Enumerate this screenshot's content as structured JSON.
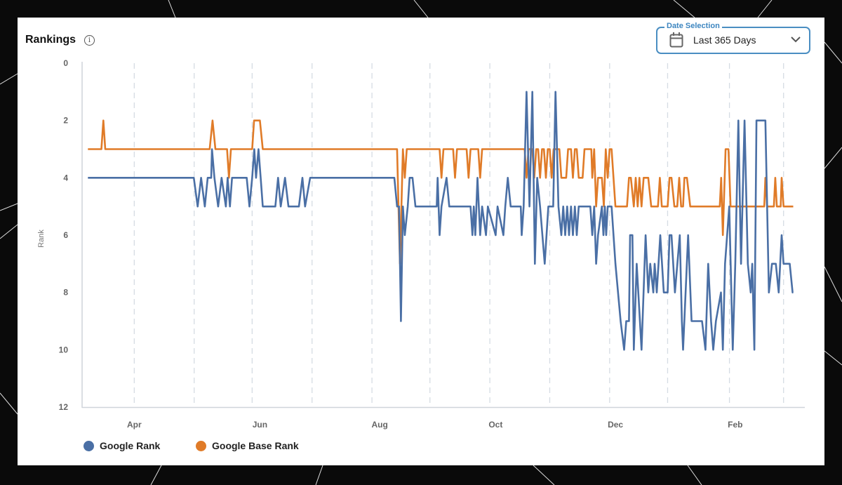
{
  "panel": {
    "title": "Rankings",
    "info_icon": "info-icon"
  },
  "date_selection": {
    "label": "Date Selection",
    "value": "Last 365 Days",
    "icon": "calendar-icon"
  },
  "colors": {
    "google_rank": "#4a6fa5",
    "google_base_rank": "#e07b28",
    "grid": "#d5dce3"
  },
  "chart_data": {
    "type": "line",
    "title": "Rankings",
    "xlabel": "",
    "ylabel": "Rank",
    "x_unit": "day index over last 365 days",
    "xlim": [
      -3,
      371
    ],
    "ylim": [
      12,
      0
    ],
    "y_ticks": [
      0,
      2,
      4,
      6,
      8,
      10,
      12
    ],
    "x_ticks": [
      {
        "label": "Apr",
        "x": 24
      },
      {
        "label": "Jun",
        "x": 89
      },
      {
        "label": "Aug",
        "x": 151
      },
      {
        "label": "Oct",
        "x": 211
      },
      {
        "label": "Dec",
        "x": 273
      },
      {
        "label": "Feb",
        "x": 335
      }
    ],
    "x_gridlines": [
      24,
      55,
      85,
      116,
      147,
      177,
      208,
      239,
      270,
      300,
      332,
      360
    ],
    "grid": "vertical dashed",
    "legend_position": "bottom-left",
    "series": [
      {
        "name": "Google Rank",
        "color": "#4a6fa5",
        "points": [
          [
            0,
            4
          ],
          [
            54.8,
            4
          ],
          [
            56.8,
            5
          ],
          [
            58.6,
            4
          ],
          [
            60.5,
            5
          ],
          [
            62,
            4
          ],
          [
            63.8,
            4
          ],
          [
            64.2,
            3
          ],
          [
            65.5,
            4
          ],
          [
            67.4,
            5
          ],
          [
            69.2,
            4
          ],
          [
            71.4,
            5
          ],
          [
            72.3,
            4
          ],
          [
            73.5,
            5
          ],
          [
            74.6,
            4
          ],
          [
            82.2,
            4
          ],
          [
            83.6,
            5
          ],
          [
            85,
            4
          ],
          [
            86.1,
            3
          ],
          [
            87,
            4
          ],
          [
            88.3,
            3
          ],
          [
            89.4,
            4
          ],
          [
            90.5,
            5
          ],
          [
            97,
            5
          ],
          [
            98.4,
            4
          ],
          [
            99.8,
            5
          ],
          [
            102,
            4
          ],
          [
            103.8,
            5
          ],
          [
            109.2,
            5
          ],
          [
            111,
            4
          ],
          [
            112.4,
            5
          ],
          [
            115,
            4
          ],
          [
            158.6,
            4
          ],
          [
            160,
            5
          ],
          [
            161,
            5
          ],
          [
            162,
            9
          ],
          [
            163,
            5
          ],
          [
            164,
            6
          ],
          [
            165.5,
            5
          ],
          [
            166.5,
            4
          ],
          [
            168,
            4
          ],
          [
            169.5,
            5
          ],
          [
            180.5,
            5
          ],
          [
            181,
            4
          ],
          [
            182,
            6
          ],
          [
            183,
            5
          ],
          [
            185.6,
            4
          ],
          [
            187,
            5
          ],
          [
            198,
            5
          ],
          [
            199,
            6
          ],
          [
            199.7,
            5
          ],
          [
            200.5,
            6
          ],
          [
            201.6,
            4
          ],
          [
            203,
            6
          ],
          [
            204,
            5
          ],
          [
            206,
            6
          ],
          [
            207,
            5
          ],
          [
            211,
            6
          ],
          [
            212,
            5
          ],
          [
            215,
            6
          ],
          [
            216,
            5
          ],
          [
            217.3,
            4
          ],
          [
            218.8,
            5
          ],
          [
            224,
            5
          ],
          [
            224.5,
            6
          ],
          [
            225.5,
            5
          ],
          [
            227,
            1
          ],
          [
            228.5,
            5
          ],
          [
            230,
            1
          ],
          [
            231.3,
            7
          ],
          [
            232.5,
            4
          ],
          [
            234,
            5
          ],
          [
            236.4,
            7
          ],
          [
            238.3,
            5
          ],
          [
            240.8,
            5
          ],
          [
            242,
            1
          ],
          [
            243.5,
            5
          ],
          [
            245,
            6
          ],
          [
            246,
            5
          ],
          [
            247,
            6
          ],
          [
            248,
            5
          ],
          [
            249,
            6
          ],
          [
            250,
            5
          ],
          [
            251,
            6
          ],
          [
            252,
            5
          ],
          [
            253,
            6
          ],
          [
            254,
            5
          ],
          [
            260,
            5
          ],
          [
            261,
            6
          ],
          [
            262,
            5
          ],
          [
            263,
            7
          ],
          [
            264,
            6
          ],
          [
            266,
            5
          ],
          [
            266.8,
            6
          ],
          [
            267.5,
            5
          ],
          [
            268.2,
            6
          ],
          [
            269,
            5
          ],
          [
            271,
            5
          ],
          [
            273,
            7
          ],
          [
            275.7,
            9
          ],
          [
            277.5,
            10
          ],
          [
            278.6,
            9
          ],
          [
            280,
            9
          ],
          [
            280.6,
            6
          ],
          [
            281.8,
            6
          ],
          [
            282.5,
            10
          ],
          [
            284,
            7
          ],
          [
            286.5,
            10
          ],
          [
            288.6,
            6
          ],
          [
            290,
            8
          ],
          [
            291,
            7
          ],
          [
            292.6,
            8
          ],
          [
            293.3,
            7
          ],
          [
            294.4,
            8
          ],
          [
            296.2,
            6
          ],
          [
            298,
            8
          ],
          [
            300,
            8
          ],
          [
            301,
            6
          ],
          [
            302,
            6
          ],
          [
            303.8,
            8
          ],
          [
            306.3,
            6
          ],
          [
            307.4,
            9
          ],
          [
            308,
            10
          ],
          [
            310.6,
            6
          ],
          [
            312.4,
            9
          ],
          [
            317.8,
            9
          ],
          [
            319.6,
            10
          ],
          [
            321,
            7
          ],
          [
            322.5,
            9
          ],
          [
            323.6,
            10
          ],
          [
            325,
            9
          ],
          [
            327.6,
            8
          ],
          [
            328.6,
            10
          ],
          [
            329.7,
            7
          ],
          [
            331.9,
            5
          ],
          [
            333.7,
            10
          ],
          [
            335,
            7
          ],
          [
            336.6,
            2
          ],
          [
            338,
            7
          ],
          [
            339.8,
            2
          ],
          [
            341.5,
            7
          ],
          [
            343,
            8
          ],
          [
            343.8,
            7
          ],
          [
            344.9,
            10
          ],
          [
            346,
            2
          ],
          [
            350.6,
            2
          ],
          [
            352.4,
            8
          ],
          [
            354,
            7
          ],
          [
            356,
            7
          ],
          [
            357.5,
            8
          ],
          [
            359,
            6
          ],
          [
            360,
            7
          ],
          [
            363.2,
            7
          ],
          [
            364.7,
            8
          ],
          [
            365,
            8
          ]
        ]
      },
      {
        "name": "Google Base Rank",
        "color": "#e07b28",
        "points": [
          [
            0,
            3
          ],
          [
            7,
            3
          ],
          [
            8,
            2
          ],
          [
            9,
            3
          ],
          [
            63,
            3
          ],
          [
            64.5,
            2
          ],
          [
            66,
            3
          ],
          [
            72,
            3
          ],
          [
            73,
            4
          ],
          [
            74,
            3
          ],
          [
            85,
            3
          ],
          [
            86,
            2
          ],
          [
            89,
            2
          ],
          [
            90.5,
            3
          ],
          [
            160,
            3
          ],
          [
            161.5,
            7
          ],
          [
            163,
            3
          ],
          [
            164,
            4
          ],
          [
            165,
            3
          ],
          [
            182,
            3
          ],
          [
            183,
            4
          ],
          [
            184,
            3
          ],
          [
            189,
            3
          ],
          [
            190,
            4
          ],
          [
            191,
            3
          ],
          [
            196,
            3
          ],
          [
            197,
            4
          ],
          [
            198,
            3
          ],
          [
            202,
            3
          ],
          [
            203,
            4
          ],
          [
            204,
            3
          ],
          [
            226,
            3
          ],
          [
            227,
            4
          ],
          [
            228,
            3
          ],
          [
            230,
            3
          ],
          [
            231,
            4
          ],
          [
            232,
            3
          ],
          [
            233,
            3
          ],
          [
            234,
            4
          ],
          [
            235,
            3
          ],
          [
            236,
            3
          ],
          [
            237,
            4
          ],
          [
            238,
            3
          ],
          [
            239,
            3
          ],
          [
            240,
            4
          ],
          [
            241,
            3
          ],
          [
            244,
            3
          ],
          [
            245,
            4
          ],
          [
            247.5,
            4
          ],
          [
            248.5,
            3
          ],
          [
            250,
            3
          ],
          [
            251,
            4
          ],
          [
            252,
            3
          ],
          [
            253,
            3
          ],
          [
            254,
            4
          ],
          [
            256,
            4
          ],
          [
            257,
            3
          ],
          [
            260.5,
            3
          ],
          [
            261,
            4
          ],
          [
            262,
            3
          ],
          [
            263,
            5
          ],
          [
            264,
            4
          ],
          [
            266,
            4
          ],
          [
            267,
            5
          ],
          [
            268,
            3
          ],
          [
            269,
            4
          ],
          [
            270,
            3
          ],
          [
            271,
            3
          ],
          [
            273,
            5
          ],
          [
            279,
            5
          ],
          [
            280,
            4
          ],
          [
            281,
            4
          ],
          [
            282.5,
            5
          ],
          [
            283.5,
            4
          ],
          [
            284.5,
            5
          ],
          [
            285.4,
            4
          ],
          [
            286.5,
            5
          ],
          [
            287.6,
            4
          ],
          [
            290,
            4
          ],
          [
            291.5,
            5
          ],
          [
            295,
            5
          ],
          [
            296,
            4
          ],
          [
            297,
            5
          ],
          [
            300,
            5
          ],
          [
            301,
            4
          ],
          [
            302,
            4
          ],
          [
            303.5,
            5
          ],
          [
            305,
            5
          ],
          [
            306,
            4
          ],
          [
            307,
            5
          ],
          [
            308,
            5
          ],
          [
            308.7,
            4
          ],
          [
            310,
            4
          ],
          [
            311.7,
            5
          ],
          [
            327,
            5
          ],
          [
            327.7,
            4
          ],
          [
            328.6,
            6
          ],
          [
            330,
            3
          ],
          [
            331.5,
            3
          ],
          [
            332.6,
            5
          ],
          [
            350,
            5
          ],
          [
            350.6,
            4
          ],
          [
            351.5,
            5
          ],
          [
            355,
            5
          ],
          [
            355.7,
            4
          ],
          [
            356.5,
            5
          ],
          [
            358.5,
            5
          ],
          [
            359,
            4
          ],
          [
            360,
            5
          ],
          [
            365,
            5
          ]
        ]
      }
    ]
  }
}
